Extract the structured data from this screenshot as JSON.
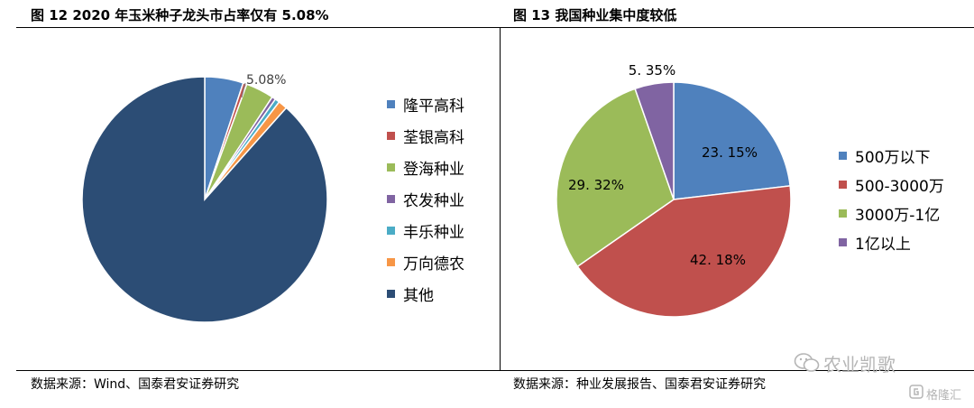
{
  "left": {
    "title": "图 12 2020 年玉米种子龙头市占率仅有 5.08%",
    "source": "数据来源：Wind、国泰君安证券研究",
    "chart_data": {
      "type": "pie",
      "annotations": [
        "5.08%"
      ],
      "slices": [
        {
          "label": "隆平高科",
          "value": 5.08,
          "color": "#4f81bd"
        },
        {
          "label": "荃银高科",
          "value": 0.5,
          "color": "#c0504d"
        },
        {
          "label": "登海种业",
          "value": 3.7,
          "color": "#9bbb59"
        },
        {
          "label": "农发种业",
          "value": 0.5,
          "color": "#8064a2"
        },
        {
          "label": "丰乐种业",
          "value": 0.6,
          "color": "#4bacc6"
        },
        {
          "label": "万向德农",
          "value": 1.2,
          "color": "#f79646"
        },
        {
          "label": "其他",
          "value": 88.42,
          "color": "#2c4d75"
        }
      ]
    }
  },
  "right": {
    "title": "图 13 我国种业集中度较低",
    "source": "数据来源：种业发展报告、国泰君安证券研究",
    "chart_data": {
      "type": "pie",
      "slices": [
        {
          "label": "500万以下",
          "value": 23.15,
          "display": "23. 15%",
          "color": "#4f81bd"
        },
        {
          "label": "500-3000万",
          "value": 42.18,
          "display": "42. 18%",
          "color": "#c0504d"
        },
        {
          "label": "3000万-1亿",
          "value": 29.32,
          "display": "29. 32%",
          "color": "#9bbb59"
        },
        {
          "label": "1亿以上",
          "value": 5.35,
          "display": "5. 35%",
          "color": "#8064a2"
        }
      ]
    }
  },
  "watermark": {
    "text": "农业凯歌",
    "small": "格隆汇"
  },
  "icons": [
    "wechat-icon",
    "gelonghui-logo-icon"
  ]
}
